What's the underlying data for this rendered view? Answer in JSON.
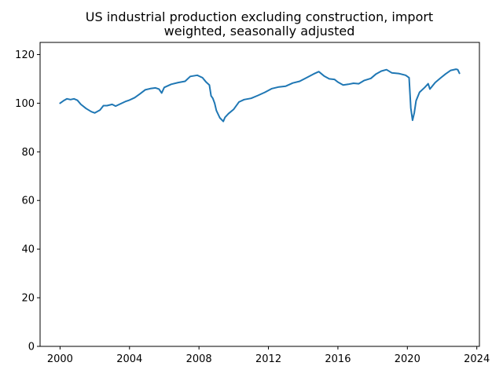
{
  "chart_data": {
    "type": "line",
    "title_lines": [
      "US industrial production excluding construction, import",
      "weighted, seasonally adjusted"
    ],
    "xlabel": "",
    "ylabel": "",
    "xlim": [
      1998.85,
      2024.15
    ],
    "ylim": [
      0,
      125
    ],
    "x_ticks": [
      2000,
      2004,
      2008,
      2012,
      2016,
      2020,
      2024
    ],
    "y_ticks": [
      0,
      20,
      40,
      60,
      80,
      100,
      120
    ],
    "grid": false,
    "legend": "none",
    "series_color": "#1f77b4",
    "series": [
      {
        "x": [
          2000.0,
          2000.2,
          2000.4,
          2000.6,
          2000.8,
          2001.0,
          2001.2,
          2001.5,
          2001.8,
          2002.0,
          2002.3,
          2002.5,
          2002.7,
          2003.0,
          2003.2,
          2003.5,
          2003.8,
          2004.0,
          2004.3,
          2004.6,
          2004.9,
          2005.2,
          2005.5,
          2005.7,
          2005.85,
          2006.0,
          2006.4,
          2006.8,
          2007.2,
          2007.5,
          2007.9,
          2008.2,
          2008.4,
          2008.6,
          2008.7,
          2008.8,
          2008.9,
          2009.0,
          2009.2,
          2009.4,
          2009.5,
          2009.7,
          2010.0,
          2010.3,
          2010.6,
          2011.0,
          2011.4,
          2011.8,
          2012.2,
          2012.6,
          2013.0,
          2013.4,
          2013.8,
          2014.2,
          2014.6,
          2014.9,
          2015.2,
          2015.5,
          2015.8,
          2016.0,
          2016.3,
          2016.6,
          2016.9,
          2017.2,
          2017.5,
          2017.9,
          2018.2,
          2018.5,
          2018.8,
          2019.1,
          2019.5,
          2019.9,
          2020.1,
          2020.2,
          2020.3,
          2020.4,
          2020.5,
          2020.7,
          2021.0,
          2021.2,
          2021.3,
          2021.6,
          2021.9,
          2022.2,
          2022.5,
          2022.8,
          2022.9,
          2023.0
        ],
        "y": [
          100.0,
          101.0,
          101.8,
          101.5,
          101.8,
          101.2,
          99.5,
          97.8,
          96.5,
          96.0,
          97.2,
          99.0,
          99.0,
          99.5,
          98.8,
          99.8,
          100.8,
          101.3,
          102.3,
          103.8,
          105.5,
          106.0,
          106.3,
          105.8,
          104.2,
          106.5,
          107.8,
          108.5,
          109.0,
          111.0,
          111.5,
          110.5,
          108.8,
          107.5,
          103.0,
          102.0,
          100.0,
          97.0,
          94.0,
          92.5,
          94.2,
          95.7,
          97.5,
          100.5,
          101.5,
          102.0,
          103.2,
          104.5,
          106.0,
          106.7,
          107.0,
          108.3,
          109.0,
          110.5,
          112.0,
          113.0,
          111.2,
          110.0,
          109.8,
          108.7,
          107.5,
          107.8,
          108.2,
          108.0,
          109.3,
          110.2,
          112.0,
          113.2,
          113.8,
          112.5,
          112.2,
          111.5,
          110.5,
          98.0,
          93.0,
          96.0,
          101.0,
          104.5,
          106.5,
          108.0,
          105.8,
          108.5,
          110.3,
          112.0,
          113.5,
          114.0,
          113.8,
          112.3
        ]
      }
    ]
  }
}
